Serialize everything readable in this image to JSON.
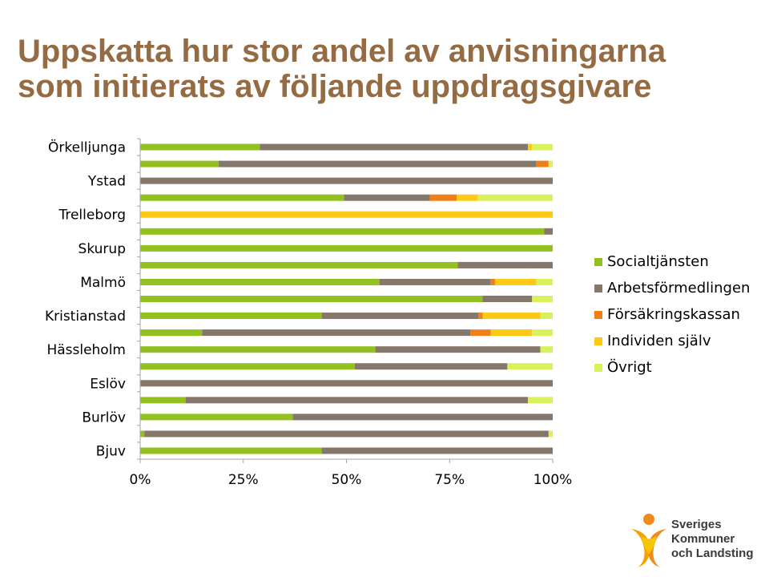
{
  "title": {
    "line1": "Uppskatta hur stor andel av anvisningarna",
    "line2": "som initierats av följande uppdragsgivare"
  },
  "colors": {
    "title": "#946b42",
    "series": [
      "#92c01e",
      "#85786a",
      "#f07f17",
      "#fcc914",
      "#d9f25a"
    ],
    "axis": "#a6a6a6"
  },
  "chart_data": {
    "type": "bar",
    "orientation": "horizontal",
    "stacked": "100%",
    "category_labels": [
      "Örkelljunga",
      "Ystad",
      "Trelleborg",
      "Skurup",
      "Malmö",
      "Kristianstad",
      "Hässleholm",
      "Eslöv",
      "Burlöv",
      "Bjuv"
    ],
    "bars_count": 19,
    "series": [
      {
        "name": "Socialtjänsten",
        "values": [
          29,
          19,
          0,
          49.4,
          0,
          97.9,
          100,
          77,
          58,
          83,
          44,
          15,
          57,
          52,
          0,
          11,
          37,
          1,
          44
        ]
      },
      {
        "name": "Arbetsförmedlingen",
        "values": [
          65,
          77,
          100,
          20.8,
          0,
          2.1,
          0,
          23,
          27,
          12,
          38,
          65,
          40,
          37,
          100,
          83,
          63,
          98,
          56
        ]
      },
      {
        "name": "Försäkringskassan",
        "values": [
          0,
          3,
          0,
          6.5,
          0,
          0,
          0,
          0,
          1,
          0,
          1,
          5,
          0,
          0,
          0,
          0,
          0,
          0,
          0
        ]
      },
      {
        "name": "Individen själv",
        "values": [
          1,
          0,
          0,
          5.2,
          100,
          0,
          0,
          0,
          10,
          0,
          14,
          10,
          0,
          0,
          0,
          0,
          0,
          0,
          0
        ]
      },
      {
        "name": "Övrigt",
        "values": [
          5,
          1,
          0,
          18.1,
          0,
          0,
          0,
          0,
          4,
          5,
          3,
          5,
          3,
          11,
          0,
          6,
          0,
          1,
          0
        ]
      }
    ],
    "x_ticks": [
      "0%",
      "25%",
      "50%",
      "75%",
      "100%"
    ],
    "xlim": [
      0,
      100
    ],
    "legend_position": "right"
  },
  "logo": {
    "line1": "Sveriges",
    "line2": "Kommuner",
    "line3": "och Landsting"
  }
}
